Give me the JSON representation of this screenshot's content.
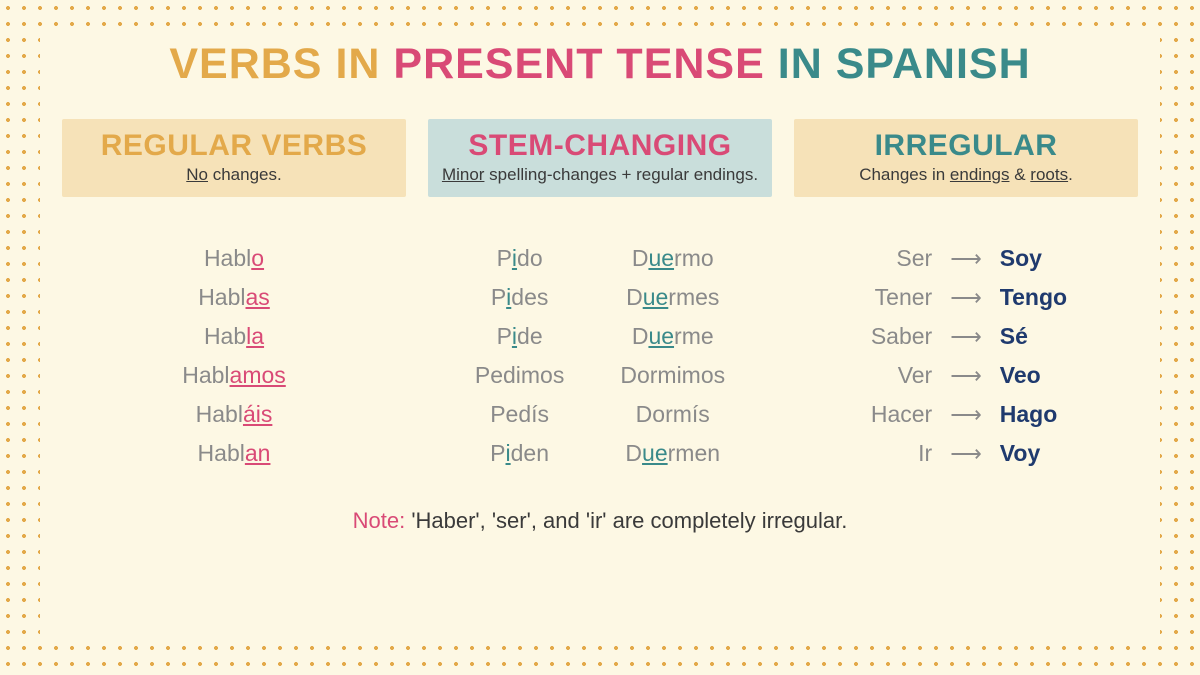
{
  "colors": {
    "background": "#fdf8e4",
    "dot": "#e3a94a",
    "orange": "#e3a94a",
    "pink": "#d94a76",
    "teal": "#3a8a8a",
    "gray_text": "#8a8a8a",
    "dark_text": "#3a3a3a",
    "navy": "#1f3a6e",
    "header_cream": "#f6e2b8",
    "header_mint": "#c9dedb"
  },
  "typography": {
    "title_fontsize": 43,
    "header_fontsize": 30,
    "sub_fontsize": 17,
    "body_fontsize": 23,
    "note_fontsize": 22
  },
  "title": {
    "part1": "VERBS IN ",
    "part2": "PRESENT TENSE",
    "part3": " IN SPANISH"
  },
  "columns": {
    "regular": {
      "heading": "REGULAR VERBS",
      "sub_ul": "No",
      "sub_rest": " changes."
    },
    "stem": {
      "heading": "STEM-CHANGING",
      "sub_ul": "Minor",
      "sub_rest": " spelling-changes + regular endings."
    },
    "irregular": {
      "heading": "IRREGULAR",
      "sub_pre": "Changes in ",
      "sub_ul1": "endings",
      "sub_mid": " & ",
      "sub_ul2": "roots",
      "sub_post": "."
    }
  },
  "regular_verbs": [
    {
      "stem": "Habl",
      "ending": "o"
    },
    {
      "stem": "Habl",
      "ending": "as"
    },
    {
      "stem": "Hab",
      "ending": "la"
    },
    {
      "stem": "Habl",
      "ending": "amos"
    },
    {
      "stem": "Habl",
      "ending": "áis"
    },
    {
      "stem": "Habl",
      "ending": "an"
    }
  ],
  "stem_changing": {
    "left": [
      {
        "pre": "P",
        "hl": "i",
        "post": "do"
      },
      {
        "pre": "P",
        "hl": "i",
        "post": "des"
      },
      {
        "pre": "P",
        "hl": "i",
        "post": "de"
      },
      {
        "pre": "Pedimos",
        "hl": "",
        "post": ""
      },
      {
        "pre": "Pedís",
        "hl": "",
        "post": ""
      },
      {
        "pre": "P",
        "hl": "i",
        "post": "den"
      }
    ],
    "right": [
      {
        "pre": "D",
        "hl": "ue",
        "post": "rmo"
      },
      {
        "pre": "D",
        "hl": "ue",
        "post": "rmes"
      },
      {
        "pre": "D",
        "hl": "ue",
        "post": "rme"
      },
      {
        "pre": "Dormimos",
        "hl": "",
        "post": ""
      },
      {
        "pre": "Dormís",
        "hl": "",
        "post": ""
      },
      {
        "pre": "D",
        "hl": "ue",
        "post": "rmen"
      }
    ]
  },
  "irregular_verbs": [
    {
      "inf": "Ser",
      "conj": "Soy"
    },
    {
      "inf": "Tener",
      "conj": "Tengo"
    },
    {
      "inf": "Saber",
      "conj": "Sé"
    },
    {
      "inf": "Ver",
      "conj": "Veo"
    },
    {
      "inf": "Hacer",
      "conj": "Hago"
    },
    {
      "inf": "Ir",
      "conj": "Voy"
    }
  ],
  "arrow_glyph": "⟶",
  "note": {
    "label": "Note:",
    "text": " 'Haber', 'ser', and 'ir' are completely irregular."
  }
}
